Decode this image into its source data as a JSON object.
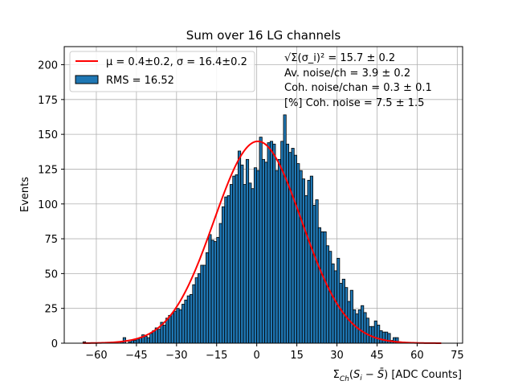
{
  "chart_data": {
    "type": "bar",
    "title": "Sum over 16 LG channels",
    "xlabel": "Σ_Ch(S_i − S̄) [ADC Counts]",
    "ylabel": "Events",
    "xlim": [
      -72,
      77
    ],
    "ylim": [
      0,
      213
    ],
    "xticks": [
      -60,
      -45,
      -30,
      -15,
      0,
      15,
      30,
      45,
      60,
      75
    ],
    "xtick_labels": [
      "−60",
      "−45",
      "−30",
      "−15",
      "0",
      "15",
      "30",
      "45",
      "60",
      "75"
    ],
    "yticks": [
      0,
      25,
      50,
      75,
      100,
      125,
      150,
      175,
      200
    ],
    "ytick_labels": [
      "0",
      "25",
      "50",
      "75",
      "100",
      "125",
      "150",
      "175",
      "200"
    ],
    "grid": true,
    "legend_position": "upper-left",
    "bin_width": 1,
    "bins_start": -65,
    "counts": [
      1,
      0,
      0,
      0,
      0,
      0,
      0,
      0,
      0,
      0,
      0,
      0,
      0,
      0,
      1,
      4,
      0,
      1,
      2,
      2,
      3,
      4,
      6,
      5,
      4,
      7,
      9,
      11,
      10,
      15,
      13,
      18,
      20,
      21,
      23,
      25,
      24,
      28,
      31,
      34,
      35,
      42,
      47,
      50,
      56,
      56,
      65,
      78,
      74,
      73,
      76,
      86,
      98,
      105,
      106,
      114,
      120,
      121,
      138,
      128,
      114,
      132,
      115,
      111,
      126,
      124,
      148,
      132,
      130,
      144,
      145,
      143,
      124,
      132,
      145,
      164,
      143,
      137,
      140,
      135,
      129,
      124,
      118,
      106,
      117,
      120,
      99,
      103,
      83,
      80,
      80,
      70,
      66,
      57,
      52,
      61,
      43,
      46,
      40,
      30,
      38,
      24,
      21,
      24,
      27,
      22,
      18,
      12,
      12,
      16,
      13,
      9,
      8,
      8,
      7,
      2,
      4,
      4,
      1
    ],
    "fit": {
      "name": "μ = 0.4±0.2, σ = 16.4±0.2",
      "mu": 0.4,
      "sigma": 16.4,
      "amplitude": 145,
      "range": [
        -65,
        69
      ],
      "color": "#ff0000"
    },
    "histogram": {
      "name": "RMS = 16.52",
      "color": "#1f77b4",
      "edgecolor": "#000000"
    },
    "annotations": [
      "√Σ(σ_i)² = 15.7 ± 0.2",
      "Av. noise/ch  = 3.9 ± 0.2",
      "Coh. noise/chan  = 0.3 ± 0.1",
      "[%] Coh. noise  = 7.5 ± 1.5"
    ]
  }
}
